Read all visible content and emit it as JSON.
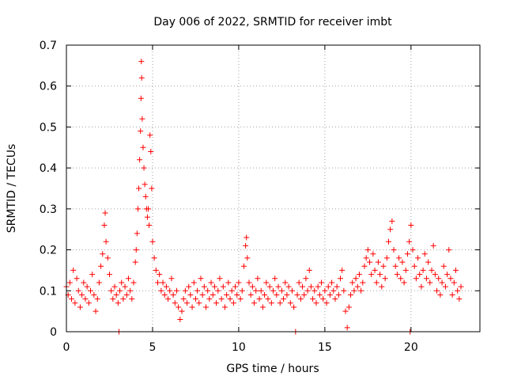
{
  "chart_data": {
    "type": "scatter",
    "title": "Day 006 of 2022, SRMTID for receiver imbt",
    "xlabel": "GPS time / hours",
    "ylabel": "SRMTID / TECUs",
    "xlim": [
      0,
      24
    ],
    "ylim": [
      0,
      0.7
    ],
    "xticks": [
      0,
      5,
      10,
      15,
      20
    ],
    "yticks": [
      0,
      0.1,
      0.2,
      0.3,
      0.4,
      0.5,
      0.6,
      0.7
    ],
    "xtick_labels": [
      "0",
      "5",
      "10",
      "15",
      "20"
    ],
    "ytick_labels": [
      "0",
      "0.1",
      "0.2",
      "0.3",
      "0.4",
      "0.5",
      "0.6",
      "0.7"
    ],
    "grid": true,
    "legend": "none",
    "series": [
      {
        "name": "SRMTID",
        "marker": "+",
        "color": "#ff0000",
        "points": [
          [
            0.0,
            0.11
          ],
          [
            0.1,
            0.09
          ],
          [
            0.2,
            0.12
          ],
          [
            0.3,
            0.08
          ],
          [
            0.4,
            0.15
          ],
          [
            0.5,
            0.07
          ],
          [
            0.6,
            0.13
          ],
          [
            0.7,
            0.1
          ],
          [
            0.8,
            0.06
          ],
          [
            0.9,
            0.09
          ],
          [
            1.0,
            0.12
          ],
          [
            1.1,
            0.08
          ],
          [
            1.2,
            0.11
          ],
          [
            1.3,
            0.07
          ],
          [
            1.4,
            0.1
          ],
          [
            1.5,
            0.14
          ],
          [
            1.6,
            0.09
          ],
          [
            1.7,
            0.05
          ],
          [
            1.8,
            0.08
          ],
          [
            1.9,
            0.12
          ],
          [
            2.0,
            0.16
          ],
          [
            2.1,
            0.19
          ],
          [
            2.2,
            0.26
          ],
          [
            2.25,
            0.29
          ],
          [
            2.3,
            0.22
          ],
          [
            2.4,
            0.18
          ],
          [
            2.5,
            0.14
          ],
          [
            2.6,
            0.1
          ],
          [
            2.7,
            0.08
          ],
          [
            2.8,
            0.11
          ],
          [
            2.9,
            0.09
          ],
          [
            3.0,
            0.07
          ],
          [
            3.05,
            0.0
          ],
          [
            3.1,
            0.1
          ],
          [
            3.2,
            0.12
          ],
          [
            3.3,
            0.08
          ],
          [
            3.4,
            0.11
          ],
          [
            3.5,
            0.09
          ],
          [
            3.6,
            0.13
          ],
          [
            3.7,
            0.1
          ],
          [
            3.8,
            0.08
          ],
          [
            3.9,
            0.12
          ],
          [
            4.0,
            0.17
          ],
          [
            4.05,
            0.2
          ],
          [
            4.1,
            0.24
          ],
          [
            4.15,
            0.3
          ],
          [
            4.2,
            0.35
          ],
          [
            4.25,
            0.42
          ],
          [
            4.3,
            0.49
          ],
          [
            4.33,
            0.57
          ],
          [
            4.35,
            0.66
          ],
          [
            4.37,
            0.62
          ],
          [
            4.4,
            0.52
          ],
          [
            4.45,
            0.45
          ],
          [
            4.5,
            0.4
          ],
          [
            4.55,
            0.36
          ],
          [
            4.6,
            0.33
          ],
          [
            4.65,
            0.3
          ],
          [
            4.7,
            0.28
          ],
          [
            4.75,
            0.3
          ],
          [
            4.8,
            0.26
          ],
          [
            4.85,
            0.48
          ],
          [
            4.9,
            0.44
          ],
          [
            4.95,
            0.35
          ],
          [
            5.0,
            0.22
          ],
          [
            5.1,
            0.18
          ],
          [
            5.2,
            0.15
          ],
          [
            5.3,
            0.12
          ],
          [
            5.4,
            0.14
          ],
          [
            5.5,
            0.1
          ],
          [
            5.6,
            0.12
          ],
          [
            5.7,
            0.09
          ],
          [
            5.8,
            0.11
          ],
          [
            5.9,
            0.08
          ],
          [
            6.0,
            0.1
          ],
          [
            6.1,
            0.13
          ],
          [
            6.2,
            0.09
          ],
          [
            6.3,
            0.07
          ],
          [
            6.4,
            0.1
          ],
          [
            6.5,
            0.06
          ],
          [
            6.6,
            0.03
          ],
          [
            6.7,
            0.05
          ],
          [
            6.8,
            0.08
          ],
          [
            6.9,
            0.1
          ],
          [
            7.0,
            0.07
          ],
          [
            7.1,
            0.11
          ],
          [
            7.2,
            0.09
          ],
          [
            7.3,
            0.06
          ],
          [
            7.4,
            0.12
          ],
          [
            7.5,
            0.08
          ],
          [
            7.6,
            0.1
          ],
          [
            7.7,
            0.07
          ],
          [
            7.8,
            0.13
          ],
          [
            7.9,
            0.09
          ],
          [
            8.0,
            0.11
          ],
          [
            8.1,
            0.06
          ],
          [
            8.2,
            0.1
          ],
          [
            8.3,
            0.08
          ],
          [
            8.4,
            0.12
          ],
          [
            8.5,
            0.09
          ],
          [
            8.6,
            0.11
          ],
          [
            8.7,
            0.07
          ],
          [
            8.8,
            0.1
          ],
          [
            8.9,
            0.13
          ],
          [
            9.0,
            0.08
          ],
          [
            9.1,
            0.11
          ],
          [
            9.2,
            0.06
          ],
          [
            9.3,
            0.09
          ],
          [
            9.4,
            0.12
          ],
          [
            9.5,
            0.08
          ],
          [
            9.6,
            0.1
          ],
          [
            9.7,
            0.07
          ],
          [
            9.8,
            0.11
          ],
          [
            9.9,
            0.09
          ],
          [
            10.0,
            0.12
          ],
          [
            10.1,
            0.08
          ],
          [
            10.2,
            0.1
          ],
          [
            10.3,
            0.16
          ],
          [
            10.4,
            0.21
          ],
          [
            10.45,
            0.23
          ],
          [
            10.5,
            0.18
          ],
          [
            10.6,
            0.12
          ],
          [
            10.7,
            0.09
          ],
          [
            10.8,
            0.11
          ],
          [
            10.9,
            0.07
          ],
          [
            11.0,
            0.1
          ],
          [
            11.1,
            0.13
          ],
          [
            11.2,
            0.08
          ],
          [
            11.3,
            0.1
          ],
          [
            11.4,
            0.06
          ],
          [
            11.5,
            0.09
          ],
          [
            11.6,
            0.12
          ],
          [
            11.7,
            0.08
          ],
          [
            11.8,
            0.11
          ],
          [
            11.9,
            0.07
          ],
          [
            12.0,
            0.1
          ],
          [
            12.1,
            0.13
          ],
          [
            12.2,
            0.09
          ],
          [
            12.3,
            0.11
          ],
          [
            12.4,
            0.07
          ],
          [
            12.5,
            0.1
          ],
          [
            12.6,
            0.08
          ],
          [
            12.7,
            0.12
          ],
          [
            12.8,
            0.09
          ],
          [
            12.9,
            0.11
          ],
          [
            13.0,
            0.07
          ],
          [
            13.1,
            0.1
          ],
          [
            13.2,
            0.06
          ],
          [
            13.3,
            0.0
          ],
          [
            13.4,
            0.09
          ],
          [
            13.5,
            0.12
          ],
          [
            13.6,
            0.08
          ],
          [
            13.7,
            0.11
          ],
          [
            13.8,
            0.09
          ],
          [
            13.9,
            0.13
          ],
          [
            14.0,
            0.1
          ],
          [
            14.1,
            0.15
          ],
          [
            14.2,
            0.11
          ],
          [
            14.3,
            0.08
          ],
          [
            14.4,
            0.1
          ],
          [
            14.5,
            0.07
          ],
          [
            14.6,
            0.11
          ],
          [
            14.7,
            0.09
          ],
          [
            14.8,
            0.12
          ],
          [
            14.9,
            0.08
          ],
          [
            15.0,
            0.1
          ],
          [
            15.1,
            0.07
          ],
          [
            15.2,
            0.11
          ],
          [
            15.3,
            0.09
          ],
          [
            15.4,
            0.12
          ],
          [
            15.5,
            0.1
          ],
          [
            15.6,
            0.08
          ],
          [
            15.7,
            0.11
          ],
          [
            15.8,
            0.09
          ],
          [
            15.9,
            0.13
          ],
          [
            16.0,
            0.15
          ],
          [
            16.1,
            0.1
          ],
          [
            16.2,
            0.05
          ],
          [
            16.3,
            0.01
          ],
          [
            16.4,
            0.06
          ],
          [
            16.5,
            0.09
          ],
          [
            16.6,
            0.12
          ],
          [
            16.7,
            0.1
          ],
          [
            16.8,
            0.13
          ],
          [
            16.9,
            0.11
          ],
          [
            17.0,
            0.14
          ],
          [
            17.1,
            0.1
          ],
          [
            17.2,
            0.12
          ],
          [
            17.3,
            0.16
          ],
          [
            17.4,
            0.18
          ],
          [
            17.5,
            0.2
          ],
          [
            17.6,
            0.17
          ],
          [
            17.7,
            0.14
          ],
          [
            17.8,
            0.19
          ],
          [
            17.9,
            0.15
          ],
          [
            18.0,
            0.12
          ],
          [
            18.1,
            0.17
          ],
          [
            18.2,
            0.14
          ],
          [
            18.3,
            0.11
          ],
          [
            18.4,
            0.16
          ],
          [
            18.5,
            0.13
          ],
          [
            18.6,
            0.18
          ],
          [
            18.7,
            0.22
          ],
          [
            18.8,
            0.25
          ],
          [
            18.9,
            0.27
          ],
          [
            19.0,
            0.2
          ],
          [
            19.1,
            0.16
          ],
          [
            19.2,
            0.14
          ],
          [
            19.3,
            0.18
          ],
          [
            19.4,
            0.13
          ],
          [
            19.5,
            0.17
          ],
          [
            19.6,
            0.12
          ],
          [
            19.7,
            0.15
          ],
          [
            19.8,
            0.19
          ],
          [
            19.9,
            0.22
          ],
          [
            19.95,
            0.0
          ],
          [
            20.0,
            0.26
          ],
          [
            20.1,
            0.2
          ],
          [
            20.2,
            0.16
          ],
          [
            20.3,
            0.13
          ],
          [
            20.4,
            0.18
          ],
          [
            20.5,
            0.14
          ],
          [
            20.6,
            0.11
          ],
          [
            20.7,
            0.15
          ],
          [
            20.8,
            0.19
          ],
          [
            20.9,
            0.13
          ],
          [
            21.0,
            0.17
          ],
          [
            21.1,
            0.12
          ],
          [
            21.2,
            0.15
          ],
          [
            21.3,
            0.21
          ],
          [
            21.4,
            0.14
          ],
          [
            21.5,
            0.1
          ],
          [
            21.6,
            0.13
          ],
          [
            21.7,
            0.09
          ],
          [
            21.8,
            0.12
          ],
          [
            21.9,
            0.16
          ],
          [
            22.0,
            0.11
          ],
          [
            22.1,
            0.14
          ],
          [
            22.2,
            0.2
          ],
          [
            22.3,
            0.13
          ],
          [
            22.4,
            0.09
          ],
          [
            22.5,
            0.12
          ],
          [
            22.6,
            0.15
          ],
          [
            22.7,
            0.1
          ],
          [
            22.8,
            0.08
          ],
          [
            22.9,
            0.11
          ]
        ]
      }
    ]
  }
}
